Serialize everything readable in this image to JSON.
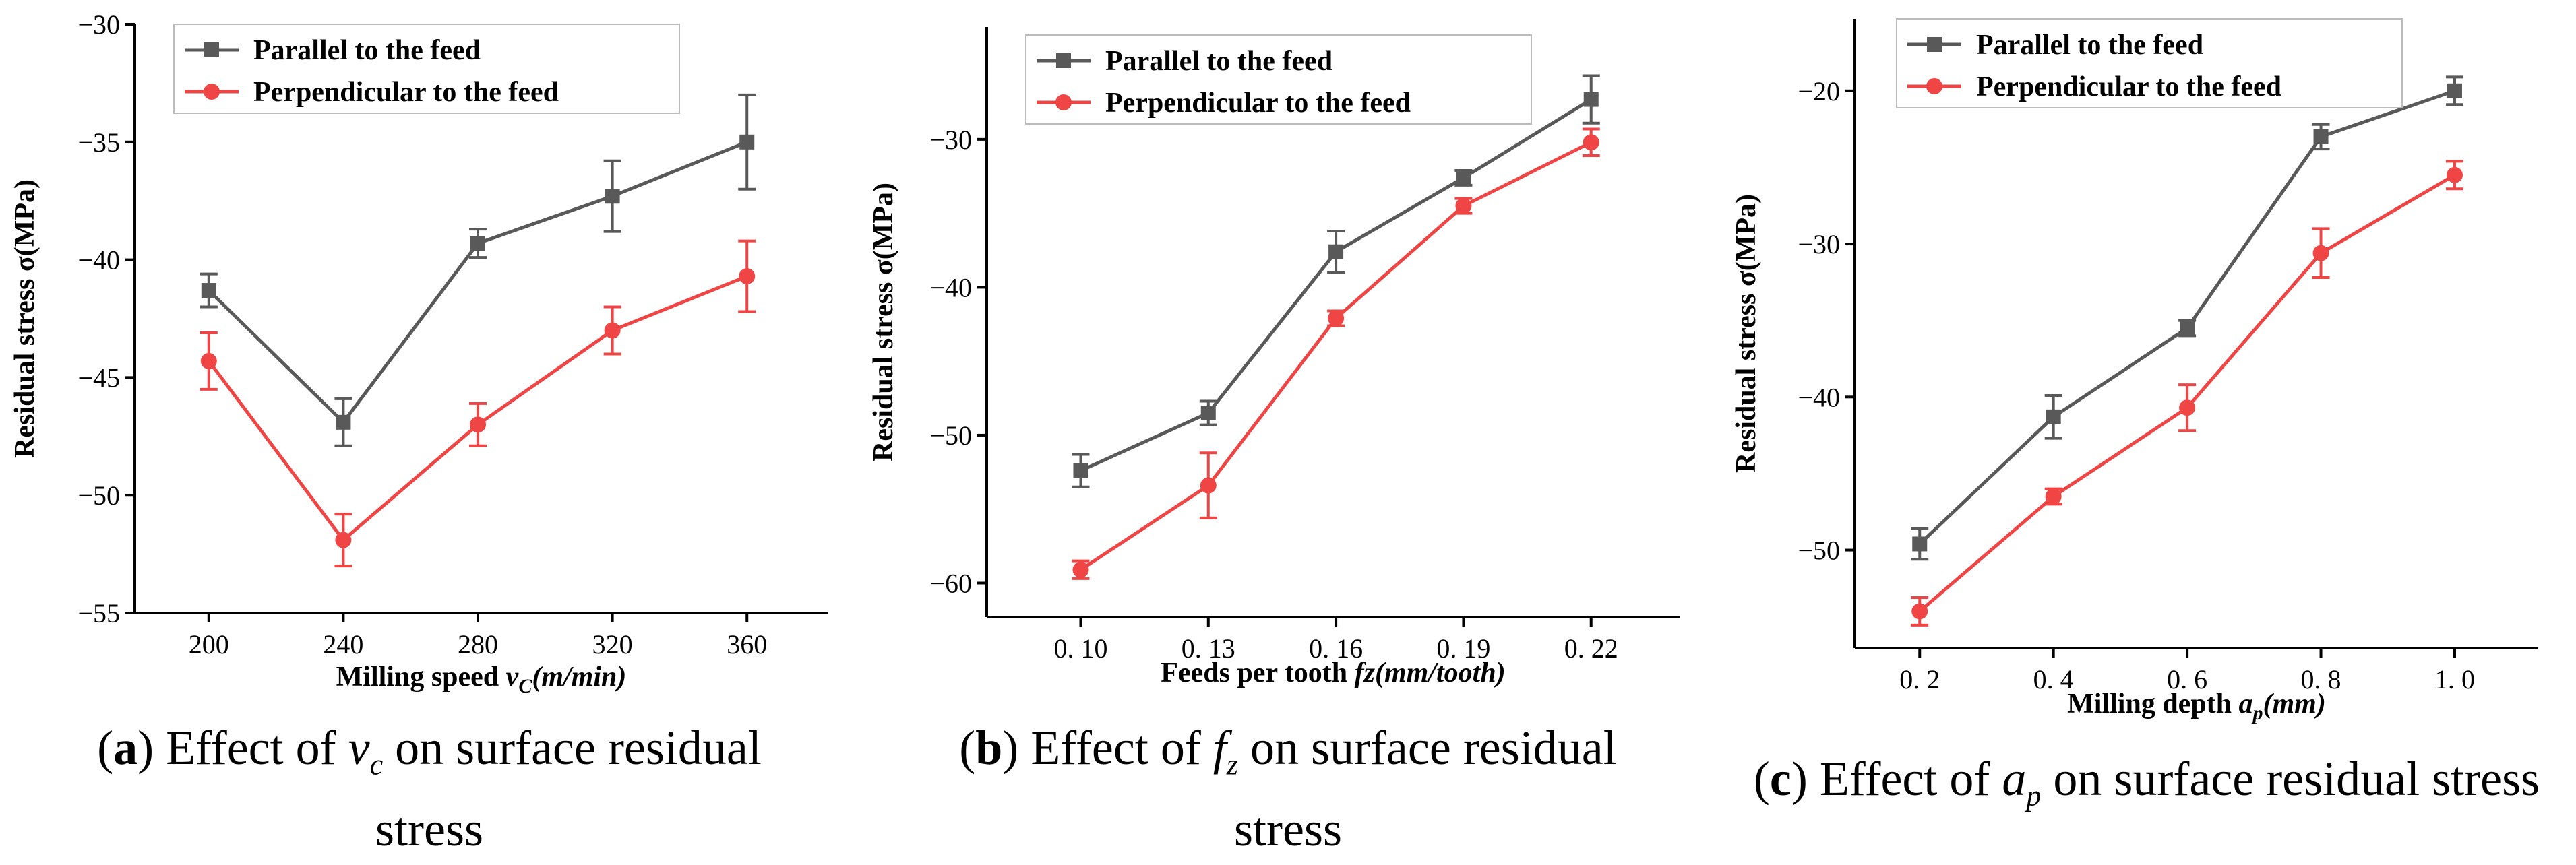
{
  "colors": {
    "parallel": "#595959",
    "perpendicular": "#f04545"
  },
  "chart_data": [
    {
      "type": "line",
      "panel": "a",
      "x_ticks": [
        "200",
        "240",
        "280",
        "320",
        "360"
      ],
      "x": [
        200,
        240,
        280,
        320,
        360
      ],
      "xlim": [
        178,
        384
      ],
      "ylim": [
        -55,
        -30
      ],
      "y_ticks": [
        -55,
        -50,
        -45,
        -40,
        -35,
        -30
      ],
      "y_tick_labels": [
        "−55",
        "−50",
        "−45",
        "−40",
        "−35",
        "−30"
      ],
      "xlabel_main": "Milling speed ",
      "xlabel_var": "v",
      "xlabel_sub": "C",
      "xlabel_unit": "(m/min)",
      "ylabel": "Residual stress σ(MPa)",
      "legend": [
        "Parallel to the feed",
        "Perpendicular to the feed"
      ],
      "legend_position": "top-left",
      "series": [
        {
          "name": "Parallel to the feed",
          "values": [
            -41.3,
            -46.9,
            -39.3,
            -37.3,
            -35.0
          ],
          "errors": [
            0.7,
            1.0,
            0.6,
            1.5,
            2.0
          ]
        },
        {
          "name": "Perpendicular to the feed",
          "values": [
            -44.3,
            -51.9,
            -47.0,
            -43.0,
            -40.7
          ],
          "errors": [
            1.2,
            1.1,
            0.9,
            1.0,
            1.5
          ]
        }
      ]
    },
    {
      "type": "line",
      "panel": "b",
      "x_ticks": [
        "0. 10",
        "0. 13",
        "0. 16",
        "0. 19",
        "0. 22"
      ],
      "x": [
        0.1,
        0.13,
        0.16,
        0.19,
        0.22
      ],
      "xlim": [
        0.0779,
        0.2408
      ],
      "ylim": [
        -62.3,
        -22.4
      ],
      "y_ticks": [
        -60,
        -50,
        -40,
        -30
      ],
      "y_tick_labels": [
        "−60",
        "−50",
        "−40",
        "−30"
      ],
      "xlabel_main": "Feeds per tooth ",
      "xlabel_var": "fz",
      "xlabel_sub": "",
      "xlabel_unit": "(mm/tooth)",
      "ylabel": "Residual stress σ(MPa)",
      "legend": [
        "Parallel to the feed",
        "Perpendicular to the feed"
      ],
      "legend_position": "top-left",
      "series": [
        {
          "name": "Parallel to the feed",
          "values": [
            -52.4,
            -48.5,
            -37.6,
            -32.6,
            -27.3
          ],
          "errors": [
            1.1,
            0.8,
            1.4,
            0.5,
            1.6
          ]
        },
        {
          "name": "Perpendicular to the feed",
          "values": [
            -59.1,
            -53.4,
            -42.1,
            -34.5,
            -30.2
          ],
          "errors": [
            0.6,
            2.2,
            0.5,
            0.5,
            0.9
          ]
        }
      ]
    },
    {
      "type": "line",
      "panel": "c",
      "x_ticks": [
        "0. 2",
        "0. 4",
        "0. 6",
        "0. 8",
        "1. 0"
      ],
      "x": [
        0.2,
        0.4,
        0.6,
        0.8,
        1.0
      ],
      "xlim": [
        0.103,
        1.125
      ],
      "ylim": [
        -56.4,
        -15.3
      ],
      "y_ticks": [
        -50,
        -40,
        -30,
        -20
      ],
      "y_tick_labels": [
        "−50",
        "−40",
        "−30",
        "−20"
      ],
      "xlabel_main": "Milling depth ",
      "xlabel_var": "a",
      "xlabel_sub": "p",
      "xlabel_unit": "(mm)",
      "ylabel": "Residual stress σ(MPa)",
      "legend": [
        "Parallel to the feed",
        "Perpendicular to the feed"
      ],
      "legend_position": "top-left",
      "series": [
        {
          "name": "Parallel to the feed",
          "values": [
            -49.6,
            -41.3,
            -35.5,
            -23.0,
            -20.0
          ],
          "errors": [
            1.0,
            1.4,
            0.5,
            0.8,
            0.9
          ]
        },
        {
          "name": "Perpendicular to the feed",
          "values": [
            -54.0,
            -46.5,
            -40.7,
            -30.6,
            -25.5
          ],
          "errors": [
            0.9,
            0.5,
            1.5,
            1.6,
            0.9
          ]
        }
      ]
    }
  ],
  "captions": [
    {
      "letter": "a",
      "pre": "Effect of ",
      "var": "v",
      "sub": "c",
      "post": " on surface residual",
      "line2": "stress"
    },
    {
      "letter": "b",
      "pre": "Effect of ",
      "var": "f",
      "sub": "z",
      "post": " on surface residual",
      "line2": "stress"
    },
    {
      "letter": "c",
      "pre": "Effect of ",
      "var": "a",
      "sub": "p",
      "post": " on surface residual stress",
      "line2": ""
    }
  ]
}
